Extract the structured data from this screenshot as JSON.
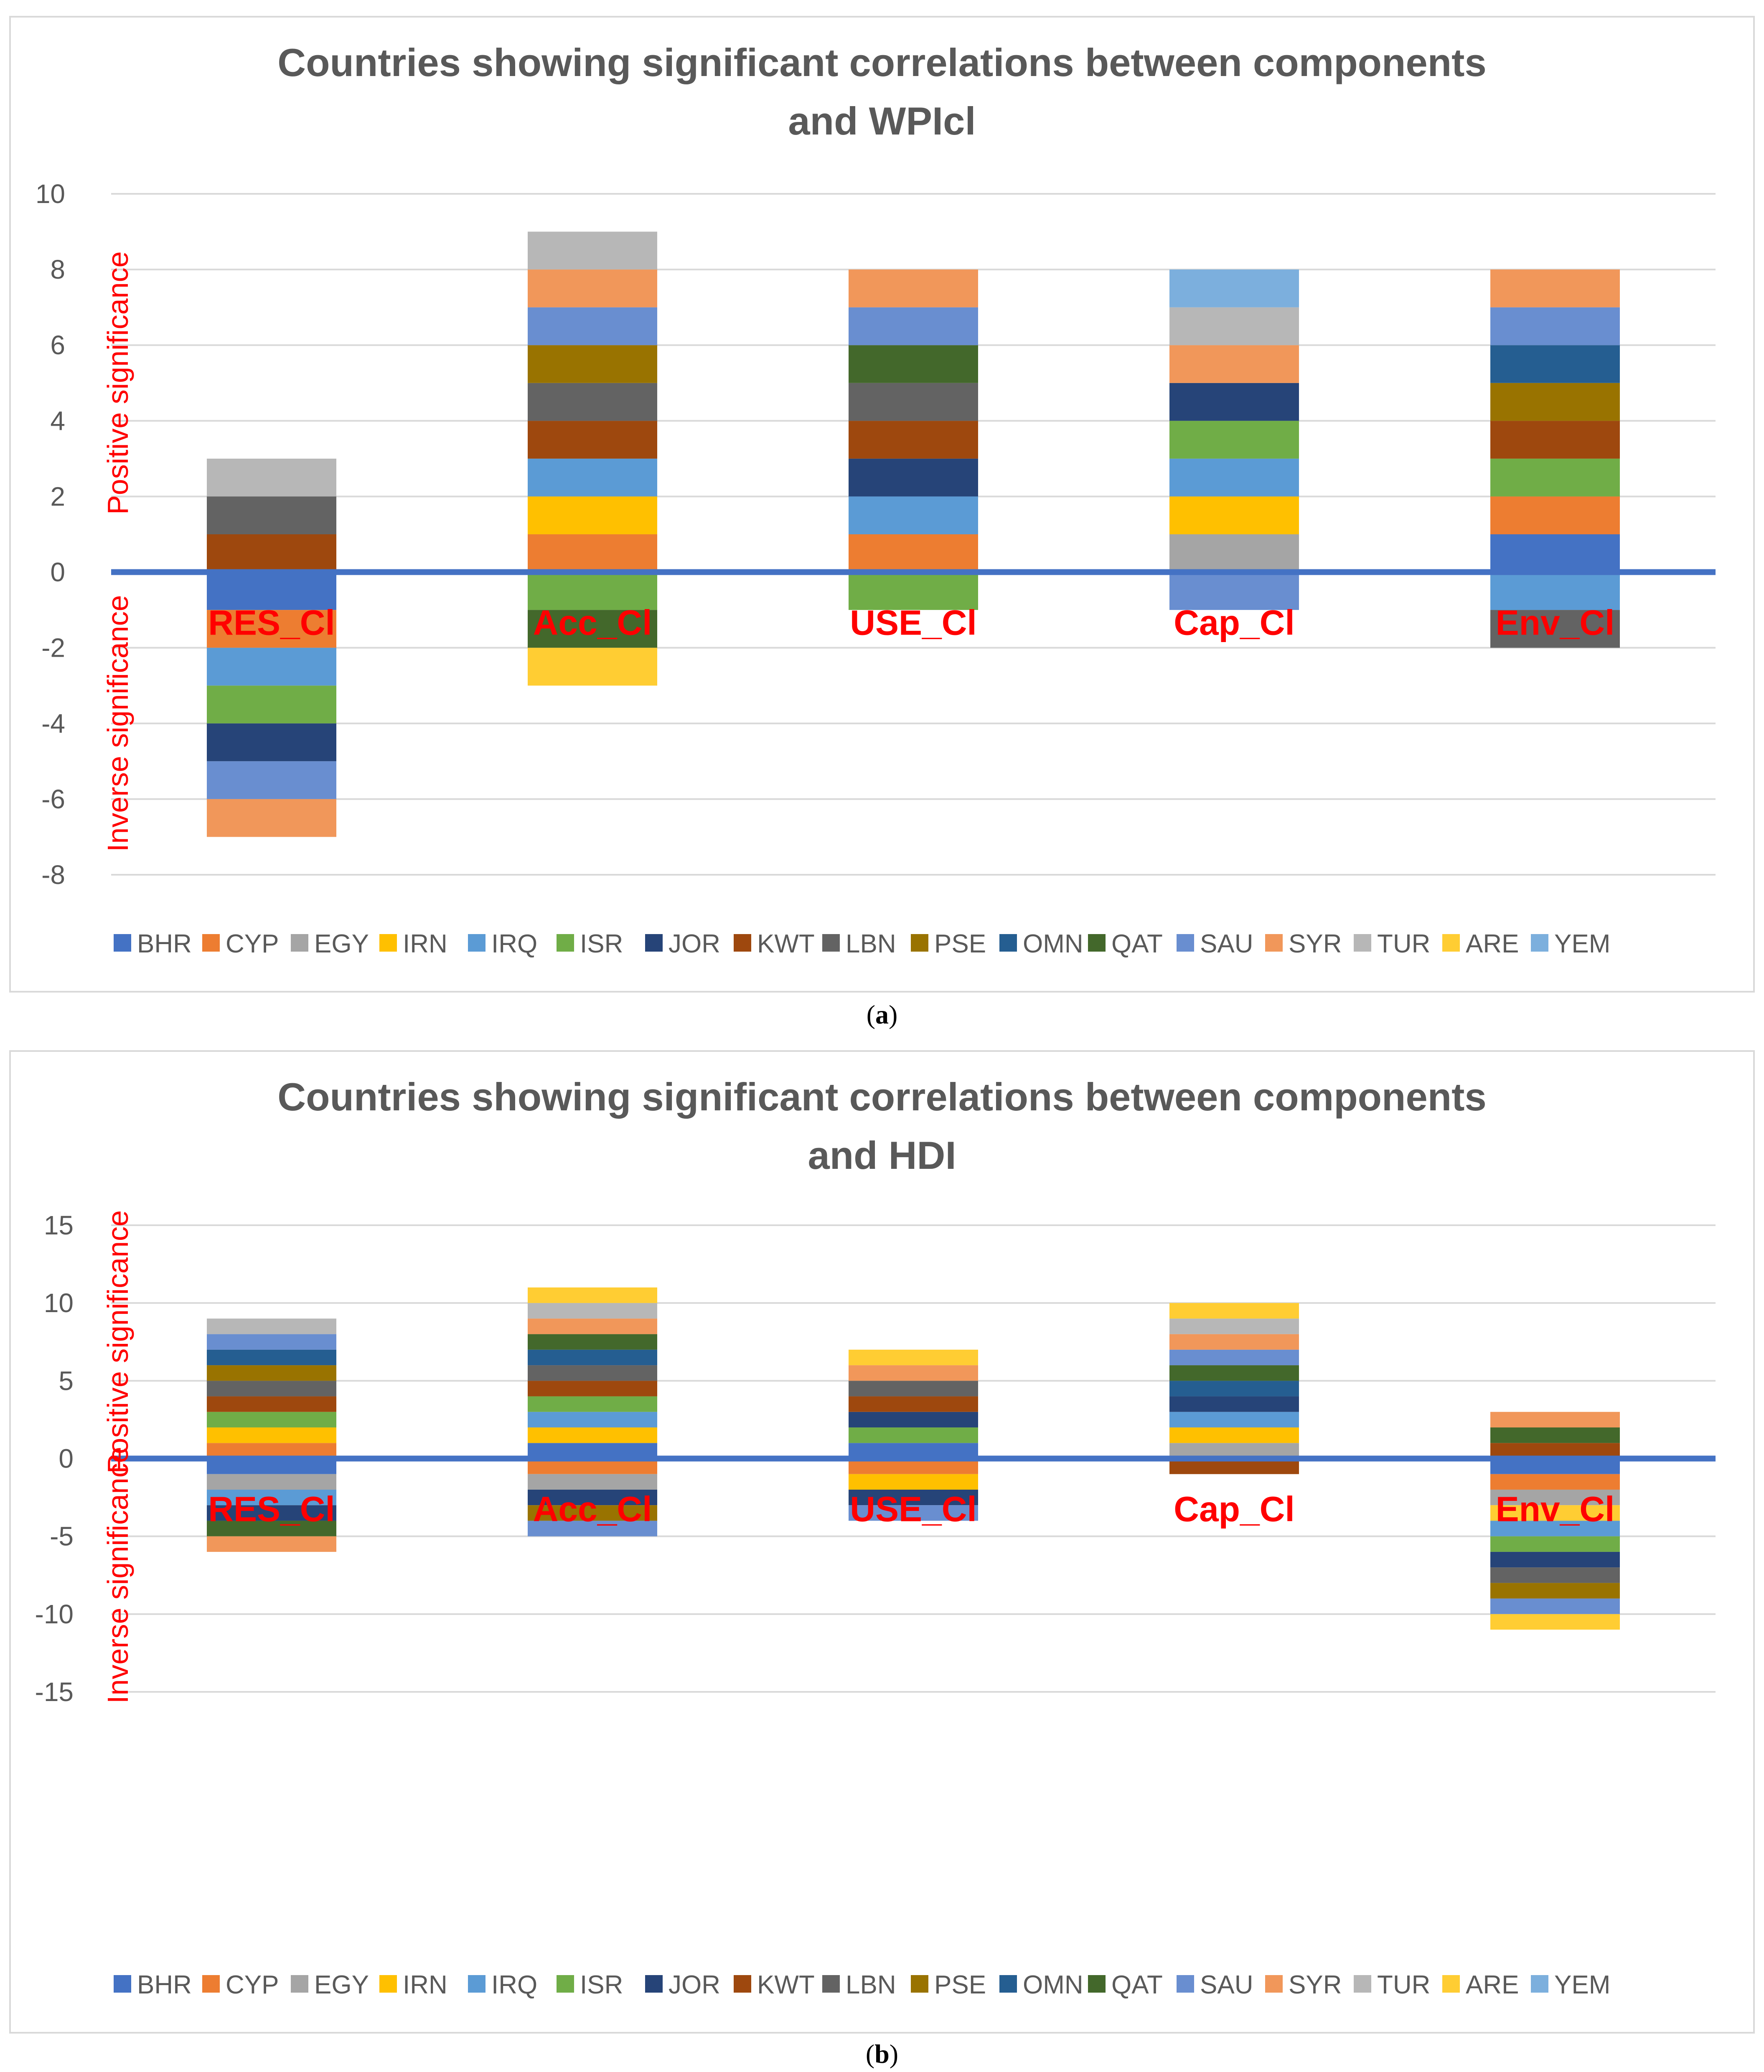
{
  "countries": [
    "BHR",
    "CYP",
    "EGY",
    "IRN",
    "IRQ",
    "ISR",
    "JOR",
    "KWT",
    "LBN",
    "PSE",
    "OMN",
    "QAT",
    "SAU",
    "SYR",
    "TUR",
    "ARE",
    "YEM"
  ],
  "colors": {
    "BHR": "#4472C4",
    "CYP": "#ED7D31",
    "EGY": "#A5A5A5",
    "IRN": "#FFC000",
    "IRQ": "#5B9BD5",
    "ISR": "#70AD47",
    "JOR": "#264478",
    "KWT": "#9E480E",
    "LBN": "#636363",
    "PSE": "#997300",
    "OMN": "#255E91",
    "QAT": "#43682B",
    "SAU": "#698ED0",
    "SYR": "#F1975A",
    "TUR": "#B7B7B7",
    "ARE": "#FFCD33",
    "YEM": "#7CAFDD"
  },
  "side_labels": {
    "positive": "Positive significance",
    "inverse": "Inverse significance"
  },
  "captions": {
    "a": "(a)",
    "b": "(b)"
  },
  "caption_parts": {
    "open": "(",
    "close": ")",
    "a": "a",
    "b": "b"
  },
  "chart_data": [
    {
      "type": "bar",
      "stacked": true,
      "title": "Countries showing significant correlations between components and WPIcl",
      "title_lines": [
        "Countries showing significant correlations between components",
        "and WPIcl"
      ],
      "categories": [
        "RES_Cl",
        "Acc_Cl",
        "USE_Cl",
        "Cap_Cl",
        "Env_Cl"
      ],
      "ylim": [
        -8,
        10
      ],
      "yticks": [
        -8,
        -6,
        -4,
        -2,
        0,
        2,
        4,
        6,
        8,
        10
      ],
      "grid": true,
      "legend_position": "bottom",
      "positive_stacks": [
        [
          "KWT",
          "LBN",
          "TUR"
        ],
        [
          "CYP",
          "IRN",
          "IRQ",
          "KWT",
          "LBN",
          "PSE",
          "SAU",
          "SYR",
          "TUR"
        ],
        [
          "CYP",
          "IRQ",
          "JOR",
          "KWT",
          "LBN",
          "QAT",
          "SAU",
          "SYR"
        ],
        [
          "EGY",
          "IRN",
          "IRQ",
          "ISR",
          "JOR",
          "SYR",
          "TUR",
          "YEM"
        ],
        [
          "BHR",
          "CYP",
          "ISR",
          "KWT",
          "PSE",
          "OMN",
          "SAU",
          "SYR"
        ]
      ],
      "positive_first_segments": [
        "IRN"
      ],
      "negative_stacks": [
        [
          "BHR",
          "CYP",
          "IRQ",
          "ISR",
          "JOR",
          "SAU",
          "SYR"
        ],
        [
          "ISR",
          "QAT",
          "ARE"
        ],
        [
          "ISR"
        ],
        [
          "SAU"
        ],
        [
          "IRQ",
          "LBN"
        ]
      ],
      "totals": {
        "positive": [
          4,
          9,
          8,
          8,
          8
        ],
        "negative": [
          7,
          3,
          1,
          1,
          2
        ]
      }
    },
    {
      "type": "bar",
      "stacked": true,
      "title": "Countries showing significant correlations between components and HDI",
      "title_lines": [
        "Countries showing significant correlations between components",
        "and HDI"
      ],
      "categories": [
        "RES_Cl",
        "Acc_Cl",
        "USE_Cl",
        "Cap_Cl",
        "Env_Cl"
      ],
      "ylim": [
        -15,
        15
      ],
      "yticks": [
        -15,
        -10,
        -5,
        0,
        5,
        10,
        15
      ],
      "grid": true,
      "legend_position": "bottom",
      "positive_stacks": [
        [
          "CYP",
          "IRN",
          "ISR",
          "KWT",
          "LBN",
          "PSE",
          "OMN",
          "SAU",
          "TUR"
        ],
        [
          "BHR",
          "IRN",
          "IRQ",
          "ISR",
          "KWT",
          "LBN",
          "OMN",
          "QAT",
          "SYR",
          "TUR",
          "ARE"
        ],
        [
          "BHR",
          "ISR",
          "JOR",
          "KWT",
          "LBN",
          "SYR",
          "ARE"
        ],
        [
          "EGY",
          "IRN",
          "IRQ",
          "JOR",
          "OMN",
          "QAT",
          "SAU",
          "SYR",
          "TUR",
          "ARE"
        ],
        [
          "KWT",
          "QAT",
          "SYR"
        ]
      ],
      "negative_stacks": [
        [
          "BHR",
          "EGY",
          "IRQ",
          "JOR",
          "QAT",
          "SYR"
        ],
        [
          "CYP",
          "EGY",
          "JOR",
          "PSE",
          "SAU"
        ],
        [
          "CYP",
          "IRN",
          "JOR",
          "SAU"
        ],
        [
          "KWT"
        ],
        [
          "BHR",
          "CYP",
          "EGY",
          "ARE",
          "IRQ",
          "ISR",
          "JOR",
          "LBN",
          "PSE",
          "SAU",
          "ARE"
        ]
      ],
      "totals": {
        "positive": [
          9,
          11,
          7,
          10,
          3
        ],
        "negative": [
          6,
          5,
          4,
          1,
          11
        ]
      }
    }
  ]
}
